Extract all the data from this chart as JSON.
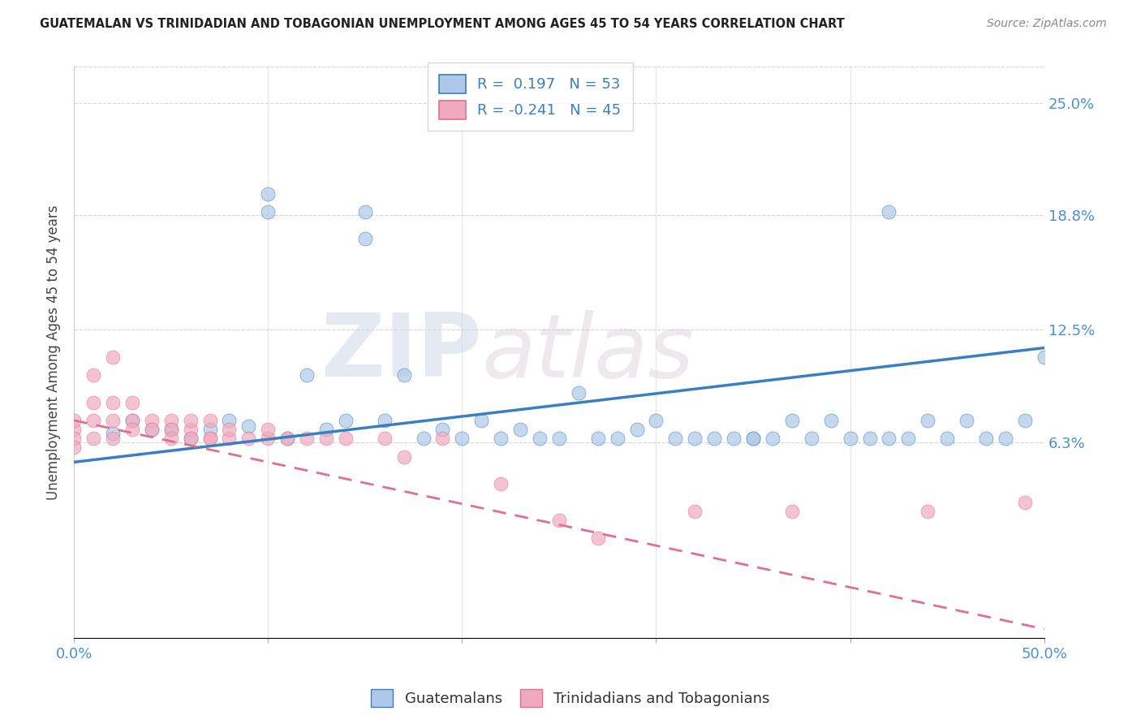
{
  "title": "GUATEMALAN VS TRINIDADIAN AND TOBAGONIAN UNEMPLOYMENT AMONG AGES 45 TO 54 YEARS CORRELATION CHART",
  "source": "Source: ZipAtlas.com",
  "ylabel": "Unemployment Among Ages 45 to 54 years",
  "xlim": [
    0.0,
    0.5
  ],
  "ylim": [
    -0.045,
    0.27
  ],
  "ytick_positions": [
    0.063,
    0.125,
    0.188,
    0.25
  ],
  "ytick_labels": [
    "6.3%",
    "12.5%",
    "18.8%",
    "25.0%"
  ],
  "blue_R": "0.197",
  "blue_N": "53",
  "pink_R": "-0.241",
  "pink_N": "45",
  "blue_color": "#adc8e8",
  "pink_color": "#f0aabe",
  "blue_line_color": "#3a7fc1",
  "pink_line_color": "#e07090",
  "watermark_zip": "ZIP",
  "watermark_atlas": "atlas",
  "blue_scatter_x": [
    0.02,
    0.03,
    0.04,
    0.05,
    0.06,
    0.07,
    0.08,
    0.09,
    0.1,
    0.1,
    0.11,
    0.12,
    0.13,
    0.14,
    0.15,
    0.15,
    0.16,
    0.17,
    0.18,
    0.19,
    0.2,
    0.21,
    0.22,
    0.23,
    0.24,
    0.25,
    0.26,
    0.27,
    0.28,
    0.29,
    0.3,
    0.31,
    0.32,
    0.33,
    0.34,
    0.35,
    0.36,
    0.37,
    0.38,
    0.39,
    0.4,
    0.41,
    0.42,
    0.43,
    0.44,
    0.45,
    0.46,
    0.47,
    0.48,
    0.49,
    0.5,
    0.42,
    0.35
  ],
  "blue_scatter_y": [
    0.068,
    0.075,
    0.07,
    0.07,
    0.065,
    0.07,
    0.075,
    0.072,
    0.19,
    0.2,
    0.065,
    0.1,
    0.07,
    0.075,
    0.19,
    0.175,
    0.075,
    0.1,
    0.065,
    0.07,
    0.065,
    0.075,
    0.065,
    0.07,
    0.065,
    0.065,
    0.09,
    0.065,
    0.065,
    0.07,
    0.075,
    0.065,
    0.065,
    0.065,
    0.065,
    0.065,
    0.065,
    0.075,
    0.065,
    0.075,
    0.065,
    0.065,
    0.065,
    0.065,
    0.075,
    0.065,
    0.075,
    0.065,
    0.065,
    0.075,
    0.11,
    0.19,
    0.065
  ],
  "pink_scatter_x": [
    0.0,
    0.0,
    0.0,
    0.0,
    0.01,
    0.01,
    0.01,
    0.01,
    0.02,
    0.02,
    0.02,
    0.02,
    0.03,
    0.03,
    0.03,
    0.04,
    0.04,
    0.05,
    0.05,
    0.05,
    0.06,
    0.06,
    0.06,
    0.07,
    0.07,
    0.07,
    0.08,
    0.08,
    0.09,
    0.1,
    0.1,
    0.11,
    0.12,
    0.13,
    0.14,
    0.16,
    0.17,
    0.19,
    0.22,
    0.25,
    0.27,
    0.32,
    0.37,
    0.44,
    0.49
  ],
  "pink_scatter_y": [
    0.07,
    0.075,
    0.065,
    0.06,
    0.1,
    0.075,
    0.065,
    0.085,
    0.11,
    0.085,
    0.075,
    0.065,
    0.075,
    0.085,
    0.07,
    0.075,
    0.07,
    0.075,
    0.07,
    0.065,
    0.07,
    0.065,
    0.075,
    0.065,
    0.075,
    0.065,
    0.065,
    0.07,
    0.065,
    0.065,
    0.07,
    0.065,
    0.065,
    0.065,
    0.065,
    0.065,
    0.055,
    0.065,
    0.04,
    0.02,
    0.01,
    0.025,
    0.025,
    0.025,
    0.03
  ],
  "blue_trend_x0": 0.0,
  "blue_trend_x1": 0.5,
  "blue_trend_y0": 0.052,
  "blue_trend_y1": 0.115,
  "pink_trend_x0": 0.0,
  "pink_trend_x1": 0.5,
  "pink_trend_y0": 0.075,
  "pink_trend_y1": -0.04,
  "background_color": "#ffffff",
  "grid_color": "#cccccc"
}
